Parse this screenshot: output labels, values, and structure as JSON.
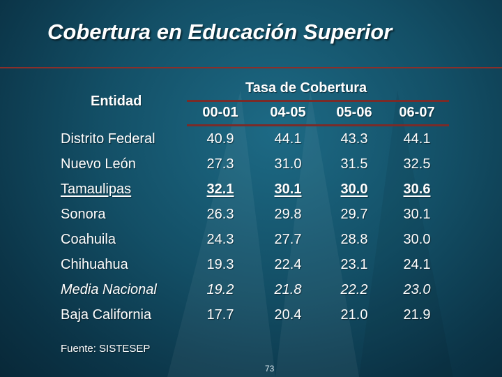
{
  "title": "Cobertura en Educación Superior",
  "table": {
    "entity_header": "Entidad",
    "rate_header": "Tasa de Cobertura",
    "years": [
      "00-01",
      "04-05",
      "05-06",
      "06-07"
    ],
    "rows": [
      {
        "name": "Distrito Federal",
        "values": [
          "40.9",
          "44.1",
          "43.3",
          "44.1"
        ]
      },
      {
        "name": "Nuevo León",
        "values": [
          "27.3",
          "31.0",
          "31.5",
          "32.5"
        ]
      },
      {
        "name": "Tamaulipas",
        "values": [
          "32.1",
          "30.1",
          "30.0",
          "30.6"
        ]
      },
      {
        "name": "Sonora",
        "values": [
          "26.3",
          "29.8",
          "29.7",
          "30.1"
        ]
      },
      {
        "name": "Coahuila",
        "values": [
          "24.3",
          "27.7",
          "28.8",
          "30.0"
        ]
      },
      {
        "name": "Chihuahua",
        "values": [
          "19.3",
          "22.4",
          "23.1",
          "24.1"
        ]
      },
      {
        "name": "Media Nacional",
        "values": [
          "19.2",
          "21.8",
          "22.2",
          "23.0"
        ]
      },
      {
        "name": "Baja California",
        "values": [
          "17.7",
          "20.4",
          "21.0",
          "21.9"
        ]
      }
    ]
  },
  "source": "Fuente: SISTESEP",
  "page_number": "73",
  "colors": {
    "background": "#134f66",
    "accent_rule": "#7a2b28",
    "text": "#ffffff"
  }
}
